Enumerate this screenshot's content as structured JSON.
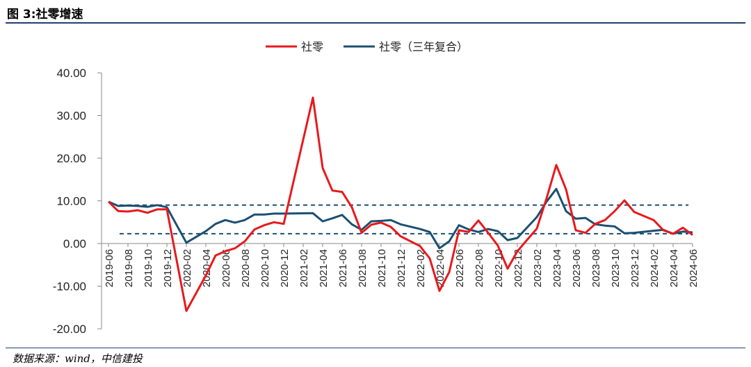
{
  "header": {
    "title": "图 3:社零增速"
  },
  "footer": {
    "source": "数据来源：wind，中信建投"
  },
  "colors": {
    "series1": "#e8191c",
    "series2": "#1b4f72",
    "rule": "#1f3e6e",
    "refline": "#1b4f72"
  },
  "chart_data": {
    "type": "line",
    "title": "",
    "xlabel": "",
    "ylabel": "",
    "ylim": [
      -20,
      40
    ],
    "yticks": [
      "40.00",
      "30.00",
      "20.00",
      "10.00",
      "0.00",
      "-10.00",
      "-20.00"
    ],
    "ytick_values": [
      40,
      30,
      20,
      10,
      0,
      -10,
      -20
    ],
    "grid": false,
    "legend": "top-center",
    "x": [
      "2019-06",
      "2019-07",
      "2019-08",
      "2019-09",
      "2019-10",
      "2019-11",
      "2019-12",
      "2020-01",
      "2020-02",
      "2020-03",
      "2020-04",
      "2020-05",
      "2020-06",
      "2020-07",
      "2020-08",
      "2020-09",
      "2020-10",
      "2020-11",
      "2020-12",
      "2021-01",
      "2021-02",
      "2021-03",
      "2021-04",
      "2021-05",
      "2021-06",
      "2021-07",
      "2021-08",
      "2021-09",
      "2021-10",
      "2021-11",
      "2021-12",
      "2022-01",
      "2022-02",
      "2022-03",
      "2022-04",
      "2022-05",
      "2022-06",
      "2022-07",
      "2022-08",
      "2022-09",
      "2022-10",
      "2022-11",
      "2022-12",
      "2023-01",
      "2023-02",
      "2023-03",
      "2023-04",
      "2023-05",
      "2023-06",
      "2023-07",
      "2023-08",
      "2023-09",
      "2023-10",
      "2023-11",
      "2023-12",
      "2024-01",
      "2024-02",
      "2024-03",
      "2024-04",
      "2024-05",
      "2024-06"
    ],
    "xtick_labels": [
      "2019-06",
      "2019-08",
      "2019-10",
      "2019-12",
      "2020-02",
      "2020-04",
      "2020-06",
      "2020-08",
      "2020-10",
      "2020-12",
      "2021-02",
      "2021-04",
      "2021-06",
      "2021-08",
      "2021-10",
      "2021-12",
      "2022-02",
      "2022-04",
      "2022-06",
      "2022-08",
      "2022-10",
      "2022-12",
      "2023-02",
      "2023-04",
      "2023-06",
      "2023-08",
      "2023-10",
      "2023-12",
      "2024-02",
      "2024-04",
      "2024-06"
    ],
    "series": [
      {
        "name": "社零",
        "values": [
          9.8,
          7.6,
          7.5,
          7.8,
          7.2,
          8.0,
          8.0,
          null,
          -15.8,
          null,
          -7.5,
          -2.8,
          -1.8,
          -1.1,
          0.5,
          3.3,
          4.3,
          5.0,
          4.6,
          null,
          null,
          34.2,
          17.7,
          12.4,
          12.1,
          8.5,
          2.5,
          4.4,
          4.9,
          3.9,
          1.7,
          null,
          -0.6,
          -3.5,
          -11.1,
          -6.7,
          3.1,
          2.7,
          5.4,
          2.5,
          -0.5,
          -5.9,
          -1.8,
          null,
          3.5,
          10.6,
          18.4,
          12.7,
          3.1,
          2.5,
          4.6,
          5.5,
          7.6,
          10.1,
          7.4,
          null,
          5.5,
          3.1,
          2.3,
          3.7,
          2.0
        ]
      },
      {
        "name": "社零（三年复合）",
        "values": [
          9.8,
          8.8,
          8.9,
          8.8,
          8.6,
          9.0,
          8.5,
          null,
          0.2,
          null,
          2.9,
          4.6,
          5.5,
          4.9,
          5.5,
          6.8,
          6.8,
          7.0,
          7.0,
          null,
          null,
          7.1,
          5.2,
          5.9,
          6.7,
          4.5,
          3.2,
          5.2,
          5.3,
          5.5,
          4.5,
          null,
          3.4,
          2.7,
          -1.1,
          0.5,
          4.3,
          3.3,
          2.7,
          3.4,
          2.9,
          0.8,
          1.3,
          null,
          6.2,
          9.8,
          12.8,
          7.6,
          5.8,
          6.0,
          4.5,
          4.2,
          4.0,
          2.4,
          2.5,
          null,
          3.0,
          3.2,
          2.3,
          2.8,
          2.6
        ]
      }
    ],
    "reference_lines": [
      9.0,
      2.3
    ]
  }
}
